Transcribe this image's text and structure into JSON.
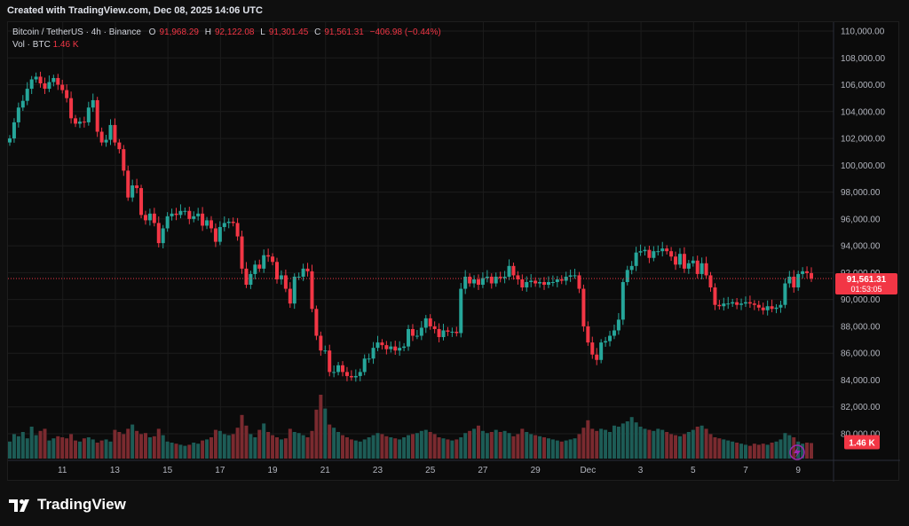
{
  "header": {
    "created_text": "Created with TradingView.com, Dec 08, 2025 14:06 UTC"
  },
  "legend": {
    "symbol": "Bitcoin / TetherUS · 4h · Binance",
    "open_label": "O",
    "open_value": "91,968.29",
    "high_label": "H",
    "high_value": "92,122.08",
    "low_label": "L",
    "low_value": "91,301.45",
    "close_label": "C",
    "close_value": "91,561.31",
    "change": "−406.98 (−0.44%)",
    "vol_label": "Vol · BTC",
    "vol_value": "1.46 K"
  },
  "price_badge": {
    "price": "91,561.31",
    "countdown": "01:53:05"
  },
  "volume_badge": {
    "value": "1.46 K"
  },
  "brand": {
    "name": "TradingView"
  },
  "colors": {
    "up": "#26a69a",
    "down": "#f23645",
    "up_vol": "#1d5c56",
    "down_vol": "#7a2a2f",
    "grid": "#1c1c1c",
    "last_price_line": "#f23645"
  },
  "chart_data": {
    "type": "candlestick",
    "symbol": "BTCUSDT",
    "timeframe": "4h",
    "exchange": "Binance",
    "price_axis": {
      "min": 79000,
      "max": 110000,
      "ticks": [
        "80,000.00",
        "82,000.00",
        "84,000.00",
        "86,000.00",
        "88,000.00",
        "90,000.00",
        "92,000.00",
        "94,000.00",
        "96,000.00",
        "98,000.00",
        "100,000.00",
        "102,000.00",
        "104,000.00",
        "106,000.00",
        "108,000.00",
        "110,000.00"
      ]
    },
    "time_axis": {
      "ticks": [
        {
          "label": "11",
          "index": 12
        },
        {
          "label": "13",
          "index": 24
        },
        {
          "label": "15",
          "index": 36
        },
        {
          "label": "17",
          "index": 48
        },
        {
          "label": "19",
          "index": 60
        },
        {
          "label": "21",
          "index": 72
        },
        {
          "label": "23",
          "index": 84
        },
        {
          "label": "25",
          "index": 96
        },
        {
          "label": "27",
          "index": 108
        },
        {
          "label": "29",
          "index": 120
        },
        {
          "label": "Dec",
          "index": 132
        },
        {
          "label": "3",
          "index": 144
        },
        {
          "label": "5",
          "index": 156
        },
        {
          "label": "7",
          "index": 168
        },
        {
          "label": "9",
          "index": 180
        }
      ]
    },
    "last_price": 91561.31,
    "closes": [
      102000,
      103200,
      104300,
      104800,
      105700,
      106400,
      106600,
      106100,
      105700,
      106200,
      106500,
      106000,
      105600,
      105000,
      103500,
      103100,
      103250,
      103200,
      104300,
      104850,
      102500,
      101700,
      101900,
      103000,
      101700,
      101200,
      99600,
      97600,
      98500,
      98300,
      96300,
      95900,
      96400,
      95700,
      94200,
      95300,
      96200,
      96400,
      96300,
      96600,
      96600,
      96000,
      96200,
      96400,
      95500,
      95900,
      95300,
      94300,
      95400,
      95700,
      95800,
      95700,
      94700,
      92300,
      91100,
      91900,
      92600,
      92300,
      93300,
      93200,
      92800,
      91500,
      91800,
      90800,
      89700,
      91700,
      91700,
      92300,
      92100,
      89300,
      87300,
      86200,
      86200,
      84600,
      84600,
      85100,
      84600,
      84300,
      84200,
      84300,
      84600,
      85600,
      85600,
      86400,
      86800,
      86600,
      86300,
      86500,
      86200,
      86400,
      86500,
      87800,
      87300,
      87300,
      87900,
      88600,
      88000,
      87800,
      87200,
      87700,
      87600,
      87600,
      87500,
      90800,
      91700,
      91200,
      91500,
      91100,
      91600,
      91700,
      91200,
      91700,
      91600,
      91700,
      92500,
      91800,
      91500,
      90900,
      91300,
      91400,
      91200,
      91300,
      91100,
      91300,
      91300,
      91500,
      91400,
      91700,
      91800,
      91800,
      90800,
      88000,
      86800,
      85900,
      85500,
      86800,
      86900,
      87300,
      87700,
      88500,
      91300,
      92200,
      92500,
      93500,
      93600,
      93700,
      93100,
      93600,
      93600,
      93800,
      93600,
      93200,
      92600,
      93400,
      92300,
      92700,
      92900,
      91900,
      92700,
      91800,
      90900,
      89600,
      89500,
      89700,
      89700,
      89800,
      89600,
      89700,
      89800,
      89700,
      89600,
      89400,
      89200,
      89500,
      89300,
      89400,
      89600,
      91200,
      91700,
      90900,
      91900,
      92100,
      91968,
      91561
    ],
    "volumes": [
      1.6,
      2.3,
      2.1,
      2.5,
      1.9,
      3.0,
      2.2,
      2.6,
      2.8,
      1.7,
      1.9,
      2.1,
      2.0,
      1.9,
      2.3,
      1.7,
      1.6,
      1.9,
      2.0,
      1.8,
      1.5,
      1.7,
      1.8,
      1.6,
      2.7,
      2.5,
      2.3,
      2.8,
      3.2,
      2.6,
      2.3,
      2.4,
      2.0,
      2.1,
      2.8,
      2.2,
      1.6,
      1.5,
      1.4,
      1.3,
      1.2,
      1.3,
      1.5,
      1.4,
      1.7,
      1.8,
      2.0,
      2.7,
      2.6,
      2.3,
      2.2,
      2.3,
      2.9,
      4.1,
      3.1,
      2.3,
      2.0,
      2.7,
      3.3,
      2.5,
      2.2,
      2.0,
      1.8,
      1.9,
      2.8,
      2.5,
      2.4,
      2.2,
      2.0,
      2.6,
      4.6,
      6.0,
      4.7,
      3.2,
      2.9,
      2.5,
      2.2,
      2.0,
      1.8,
      1.7,
      1.6,
      1.8,
      2.0,
      2.2,
      2.4,
      2.3,
      2.1,
      2.0,
      1.9,
      1.8,
      2.0,
      2.2,
      2.3,
      2.4,
      2.6,
      2.7,
      2.5,
      2.3,
      2.0,
      1.9,
      1.8,
      1.7,
      1.8,
      2.0,
      2.4,
      2.6,
      2.8,
      3.1,
      2.6,
      2.4,
      2.5,
      2.7,
      2.5,
      2.6,
      2.4,
      2.1,
      2.3,
      2.8,
      2.5,
      2.3,
      2.2,
      2.1,
      2.0,
      1.9,
      1.8,
      1.7,
      1.6,
      1.7,
      1.8,
      1.9,
      2.3,
      2.9,
      3.6,
      2.8,
      2.6,
      2.8,
      2.7,
      2.5,
      3.1,
      3.0,
      3.3,
      3.5,
      3.9,
      3.4,
      3.0,
      2.8,
      2.7,
      2.6,
      2.8,
      2.7,
      2.5,
      2.3,
      2.2,
      2.1,
      2.3,
      2.5,
      2.7,
      3.0,
      3.1,
      2.8,
      2.3,
      2.0,
      1.9,
      1.8,
      1.7,
      1.6,
      1.5,
      1.4,
      1.3,
      1.2,
      1.4,
      1.3,
      1.4,
      1.3,
      1.5,
      1.6,
      1.8,
      2.4,
      2.2,
      2.0,
      1.6,
      1.4,
      1.5,
      1.46
    ]
  }
}
